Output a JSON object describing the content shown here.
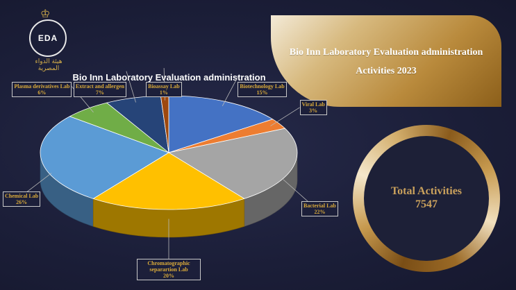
{
  "header": {
    "logo_text": "EDA",
    "logo_arabic": "هيئة الدواء المصرية",
    "panel_line1": "Bio Inn Laboratory Evaluation administration",
    "panel_line2": "Activities 2023"
  },
  "total": {
    "label": "Total Activities",
    "value": "7547"
  },
  "colors": {
    "gold_text": "#d9aa3a",
    "ring_gold": "#c79a4f"
  },
  "chart_data": {
    "type": "pie",
    "title": "Bio Inn Laboratory Evaluation administration",
    "slices": [
      {
        "label": "Biotechnology Lab",
        "value": 15,
        "display": "15%",
        "color": "#4472c4"
      },
      {
        "label": "Viral Lab",
        "value": 3,
        "display": "3%",
        "color": "#ed7d31"
      },
      {
        "label": "Bacterial Lab",
        "value": 22,
        "display": "22%",
        "color": "#a5a5a5"
      },
      {
        "label": "Chromatographic separartion Lab",
        "value": 20,
        "display": "20%",
        "color": "#ffc000"
      },
      {
        "label": "Chemical Lab",
        "value": 26,
        "display": "26%",
        "color": "#5b9bd5"
      },
      {
        "label": "Plasma derivatives Lab",
        "value": 6,
        "display": "6%",
        "color": "#70ad47"
      },
      {
        "label": "Extract and allergen",
        "value": 7,
        "display": "7%",
        "color": "#264478"
      },
      {
        "label": "Bioassay Lab",
        "value": 1,
        "display": "1%",
        "color": "#9e480e"
      }
    ]
  }
}
